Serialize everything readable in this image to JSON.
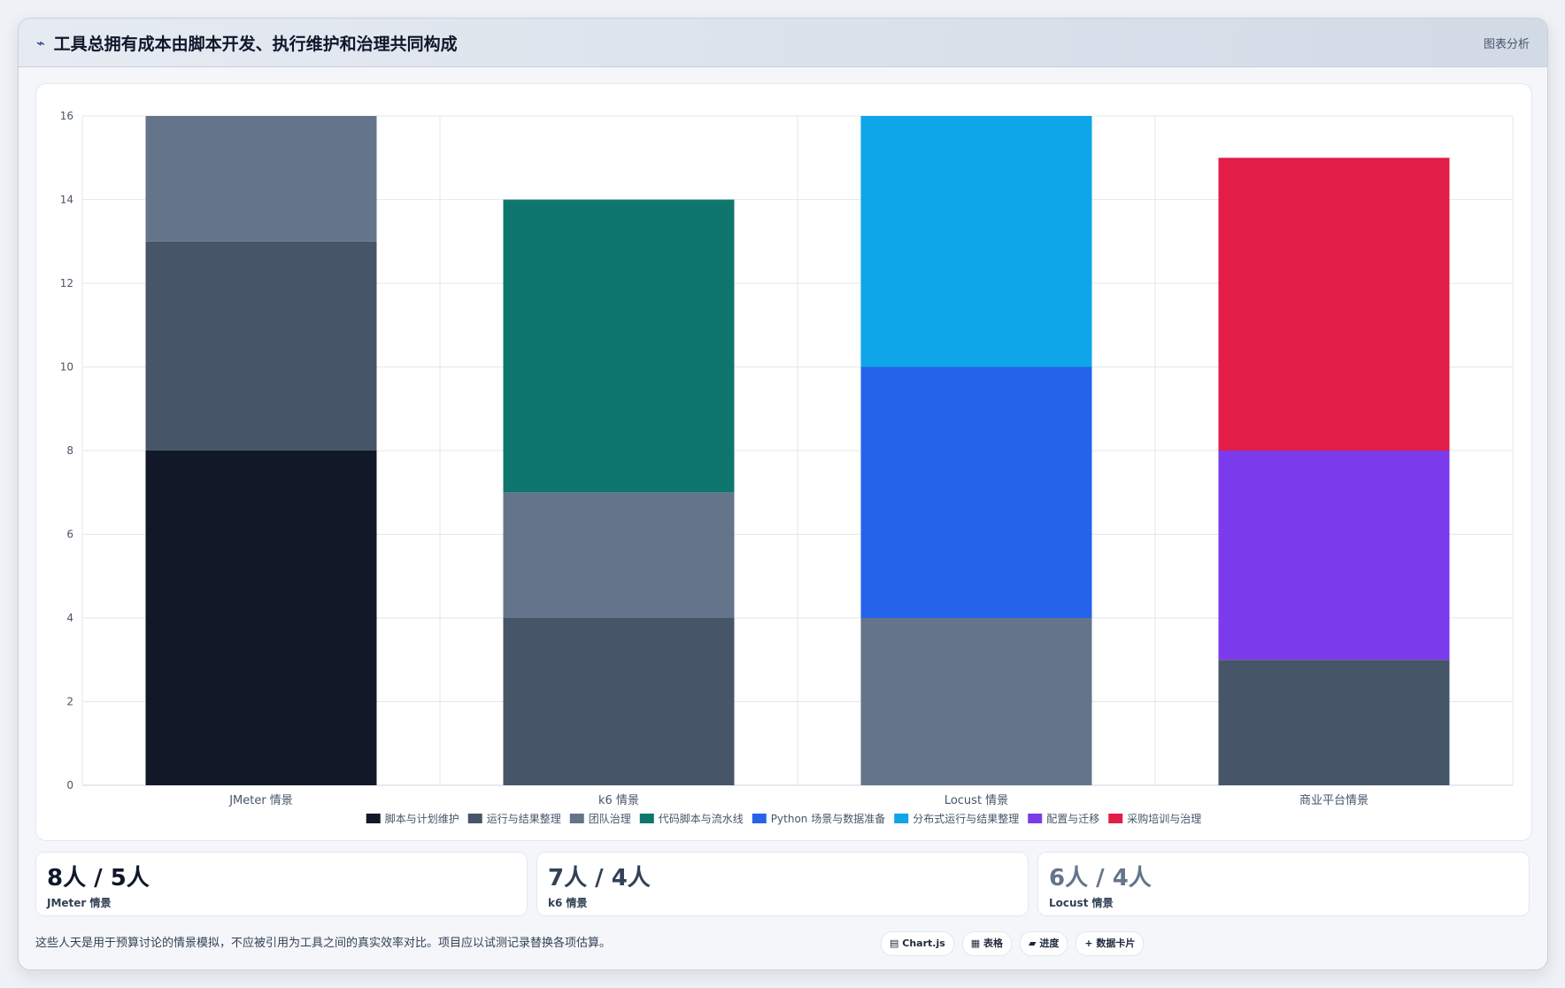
{
  "header": {
    "icon": "trend-icon",
    "title": "工具总拥有成本由脚本开发、执行维护和治理共同构成",
    "action_label": "图表分析"
  },
  "chart_data": {
    "type": "bar",
    "stacked": true,
    "categories": [
      "JMeter 情景",
      "k6 情景",
      "Locust 情景",
      "商业平台情景"
    ],
    "ylim": [
      0,
      16
    ],
    "yticks": [
      0,
      2,
      4,
      6,
      8,
      10,
      12,
      14,
      16
    ],
    "grid": true,
    "legend_position": "bottom",
    "series": [
      {
        "name": "脚本与计划维护",
        "color": "#111827",
        "values": [
          8,
          0,
          0,
          0
        ]
      },
      {
        "name": "运行与结果整理",
        "color": "#475569",
        "values": [
          5,
          4,
          0,
          3
        ]
      },
      {
        "name": "团队治理",
        "color": "#64748b",
        "values": [
          3,
          3,
          4,
          0
        ]
      },
      {
        "name": "代码脚本与流水线",
        "color": "#0f766e",
        "values": [
          0,
          7,
          0,
          0
        ]
      },
      {
        "name": "Python 场景与数据准备",
        "color": "#2563eb",
        "values": [
          0,
          0,
          6,
          0
        ]
      },
      {
        "name": "分布式运行与结果整理",
        "color": "#0ea5e9",
        "values": [
          0,
          0,
          6,
          0
        ]
      },
      {
        "name": "配置与迁移",
        "color": "#7c3aed",
        "values": [
          0,
          0,
          0,
          5
        ]
      },
      {
        "name": "采购培训与治理",
        "color": "#e11d48",
        "values": [
          0,
          0,
          0,
          7
        ]
      }
    ]
  },
  "stats": [
    {
      "value": "8人 / 5人",
      "label": "JMeter 情景",
      "color": "#0f172a"
    },
    {
      "value": "7人 / 4人",
      "label": "k6 情景",
      "color": "#334155"
    },
    {
      "value": "6人 / 4人",
      "label": "Locust 情景",
      "color": "#64748b"
    }
  ],
  "footer": {
    "note": "这些人天是用于预算讨论的情景模拟，不应被引用为工具之间的真实效率对比。项目应以试测记录替换各项估算。",
    "chips": [
      {
        "icon": "chart-icon",
        "glyph": "▤",
        "label": "Chart.js"
      },
      {
        "icon": "table-icon",
        "glyph": "▦",
        "label": "表格"
      },
      {
        "icon": "progress-icon",
        "glyph": "▰",
        "label": "进度"
      },
      {
        "icon": "plus-icon",
        "glyph": "+",
        "label": "数据卡片"
      }
    ]
  }
}
